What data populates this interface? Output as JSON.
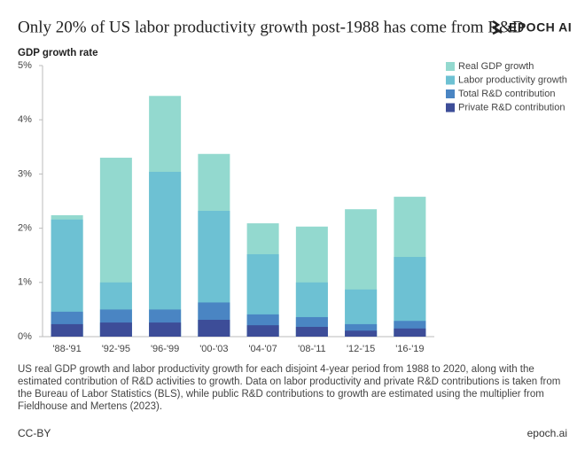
{
  "chart_data": {
    "type": "overlaid_bar",
    "title": "Only 20% of US labor productivity growth post-1988 has come from R&D",
    "brand": "EPOCH AI",
    "y_label": "GDP growth rate",
    "categories": [
      "'88-'91",
      "'92-'95",
      "'96-'99",
      "'00-'03",
      "'04-'07",
      "'08-'11",
      "'12-'15",
      "'16-'19"
    ],
    "series": [
      {
        "name": "Real GDP growth",
        "color": "#93d9cf",
        "values": [
          2.24,
          3.3,
          4.44,
          3.37,
          2.09,
          2.03,
          2.35,
          2.58
        ]
      },
      {
        "name": "Labor productivity growth",
        "color": "#6dc1d3",
        "values": [
          2.16,
          1.0,
          3.04,
          2.32,
          1.52,
          1.0,
          0.87,
          1.47
        ]
      },
      {
        "name": "Total R&D contribution",
        "color": "#4a85c3",
        "values": [
          0.46,
          0.5,
          0.5,
          0.63,
          0.41,
          0.36,
          0.23,
          0.29
        ]
      },
      {
        "name": "Private R&D contribution",
        "color": "#3d4d98",
        "values": [
          0.23,
          0.26,
          0.26,
          0.31,
          0.21,
          0.18,
          0.11,
          0.15
        ]
      }
    ],
    "ylim": [
      0,
      5
    ],
    "yticks": [
      {
        "value": 0,
        "label": "0%"
      },
      {
        "value": 1,
        "label": "1%"
      },
      {
        "value": 2,
        "label": "2%"
      },
      {
        "value": 3,
        "label": "3%"
      },
      {
        "value": 4,
        "label": "4%"
      },
      {
        "value": 5,
        "label": "5%"
      }
    ],
    "legend_position": "upper right",
    "caption": "US real GDP growth and labor productivity growth for each disjoint 4-year period from 1988 to 2020, along with the estimated contribution of R&D activities to growth. Data on labor productivity and private R&D contributions is taken from the Bureau of Labor Statistics (BLS), while public R&D contributions to growth are estimated using the multiplier from Fieldhouse and Mertens (2023).",
    "license": "CC-BY",
    "source": "epoch.ai"
  }
}
